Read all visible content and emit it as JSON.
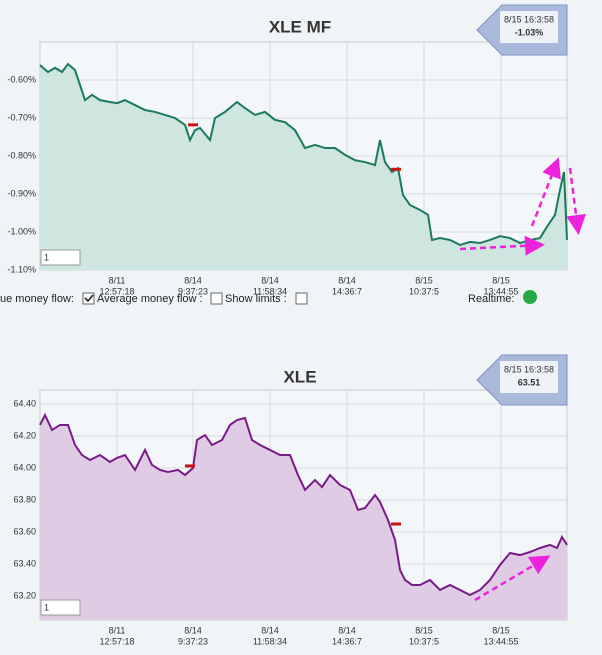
{
  "chart_data": [
    {
      "type": "line",
      "title": "XLE MF",
      "color": "#1b7a5c",
      "fill": "#cfe6e0",
      "info": {
        "date": "8/15 16:3:58",
        "value": "-1.03%"
      },
      "range_input": "1",
      "x": [
        40,
        48,
        55,
        62,
        68,
        75,
        80,
        85,
        92,
        100,
        110,
        117,
        125,
        135,
        145,
        155,
        165,
        175,
        185,
        190,
        195,
        200,
        210,
        215,
        225,
        237,
        245,
        255,
        265,
        275,
        285,
        295,
        305,
        315,
        325,
        335,
        345,
        355,
        365,
        375,
        380,
        385,
        392,
        398,
        403,
        410,
        420,
        428,
        432,
        440,
        450,
        460,
        470,
        480,
        490,
        500,
        510,
        520,
        530,
        540,
        548,
        555,
        560,
        564,
        567
      ],
      "values": [
        -0.561,
        -0.579,
        -0.568,
        -0.579,
        -0.558,
        -0.574,
        -0.613,
        -0.653,
        -0.639,
        -0.653,
        -0.658,
        -0.661,
        -0.653,
        -0.666,
        -0.679,
        -0.684,
        -0.692,
        -0.7,
        -0.718,
        -0.758,
        -0.732,
        -0.726,
        -0.758,
        -0.7,
        -0.684,
        -0.658,
        -0.674,
        -0.692,
        -0.684,
        -0.705,
        -0.711,
        -0.732,
        -0.779,
        -0.771,
        -0.779,
        -0.779,
        -0.797,
        -0.811,
        -0.816,
        -0.824,
        -0.758,
        -0.816,
        -0.842,
        -0.832,
        -0.903,
        -0.929,
        -0.942,
        -0.955,
        -1.021,
        -1.016,
        -1.021,
        -1.034,
        -1.026,
        -1.029,
        -1.021,
        -1.011,
        -1.016,
        -1.029,
        -1.021,
        -1.016,
        -0.982,
        -0.955,
        -0.889,
        -0.842,
        -1.021
      ],
      "markers": [
        {
          "x": 193,
          "y": -0.718
        },
        {
          "x": 396,
          "y": -0.835
        }
      ],
      "xlim": [
        40,
        567
      ],
      "xticks": [
        {
          "value": 117,
          "label": [
            "8/11",
            "12:57:18"
          ]
        },
        {
          "value": 193,
          "label": [
            "8/14",
            "9:37:23"
          ]
        },
        {
          "value": 270,
          "label": [
            "8/14",
            "11:58:34"
          ]
        },
        {
          "value": 347,
          "label": [
            "8/14",
            "14:36:7"
          ]
        },
        {
          "value": 424,
          "label": [
            "8/15",
            "10:37:5"
          ]
        },
        {
          "value": 501,
          "label": [
            "8/15",
            "13:44:55"
          ]
        }
      ],
      "ylim": [
        -1.1,
        -0.5
      ],
      "yticks": [
        {
          "value": -0.6,
          "label": "-0.60%"
        },
        {
          "value": -0.7,
          "label": "-0.70%"
        },
        {
          "value": -0.8,
          "label": "-0.80%"
        },
        {
          "value": -0.9,
          "label": "-0.90%"
        },
        {
          "value": -1.0,
          "label": "-1.00%"
        },
        {
          "value": -1.1,
          "label": "-1.10%"
        }
      ],
      "grid": true
    },
    {
      "type": "line",
      "title": "XLE",
      "color": "#7a1a88",
      "fill": "#dfcce4",
      "info": {
        "date": "8/15 16:3:58",
        "value": "63.51"
      },
      "range_input": "1",
      "x": [
        40,
        45,
        52,
        60,
        68,
        75,
        82,
        90,
        100,
        110,
        117,
        125,
        135,
        145,
        152,
        160,
        168,
        178,
        185,
        193,
        197,
        205,
        212,
        222,
        230,
        237,
        245,
        252,
        260,
        270,
        280,
        290,
        298,
        305,
        315,
        322,
        330,
        340,
        350,
        358,
        365,
        375,
        380,
        388,
        395,
        400,
        405,
        412,
        420,
        430,
        440,
        450,
        460,
        470,
        480,
        490,
        500,
        510,
        520,
        530,
        540,
        550,
        557,
        562,
        567
      ],
      "values": [
        64.269,
        64.331,
        64.238,
        64.269,
        64.269,
        64.144,
        64.081,
        64.05,
        64.081,
        64.038,
        64.063,
        64.081,
        63.988,
        64.113,
        64.019,
        63.988,
        63.975,
        63.988,
        63.956,
        64.0,
        64.175,
        64.206,
        64.144,
        64.175,
        64.269,
        64.3,
        64.313,
        64.175,
        64.144,
        64.113,
        64.081,
        64.081,
        63.956,
        63.863,
        63.925,
        63.881,
        63.956,
        63.894,
        63.863,
        63.738,
        63.75,
        63.831,
        63.788,
        63.675,
        63.55,
        63.363,
        63.3,
        63.269,
        63.269,
        63.3,
        63.238,
        63.269,
        63.238,
        63.206,
        63.238,
        63.3,
        63.394,
        63.469,
        63.456,
        63.475,
        63.5,
        63.519,
        63.5,
        63.569,
        63.519
      ],
      "markers": [
        {
          "x": 190,
          "y": 64.013
        },
        {
          "x": 396,
          "y": 63.65
        }
      ],
      "xlim": [
        40,
        567
      ],
      "xticks": [
        {
          "value": 117,
          "label": [
            "8/11",
            "12:57:18"
          ]
        },
        {
          "value": 193,
          "label": [
            "8/14",
            "9:37:23"
          ]
        },
        {
          "value": 270,
          "label": [
            "8/14",
            "11:58:34"
          ]
        },
        {
          "value": 347,
          "label": [
            "8/14",
            "14:36:7"
          ]
        },
        {
          "value": 424,
          "label": [
            "8/15",
            "10:37:5"
          ]
        },
        {
          "value": 501,
          "label": [
            "8/15",
            "13:44:55"
          ]
        }
      ],
      "ylim": [
        63.05,
        64.4875
      ],
      "yticks": [
        {
          "value": 64.4,
          "label": "64.40"
        },
        {
          "value": 64.2,
          "label": "64.20"
        },
        {
          "value": 64.0,
          "label": "64.00"
        },
        {
          "value": 63.8,
          "label": "63.80"
        },
        {
          "value": 63.6,
          "label": "63.60"
        },
        {
          "value": 63.4,
          "label": "63.40"
        },
        {
          "value": 63.2,
          "label": "63.20"
        }
      ],
      "grid": true
    }
  ],
  "controls": {
    "labels": [
      "ue money flow:",
      "Average money flow :",
      "Show limits :"
    ],
    "checked": [
      true,
      false,
      false
    ],
    "realtime": "Realtime:"
  }
}
